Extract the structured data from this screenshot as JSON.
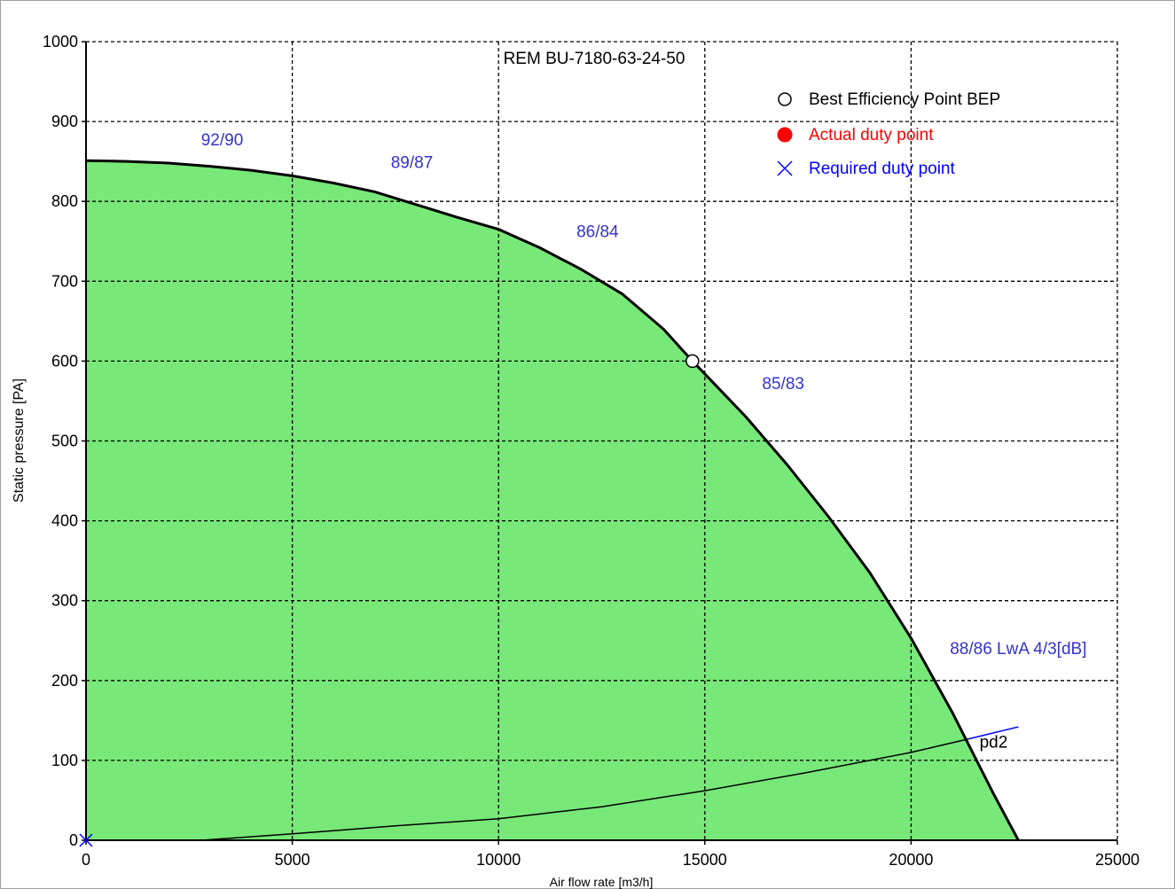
{
  "chart_data": {
    "type": "line",
    "title": "REM BU-7180-63-24-50",
    "xlabel": "Air flow rate [m3/h]",
    "ylabel": "Static pressure [PA]",
    "xlim": [
      0,
      25000
    ],
    "ylim": [
      0,
      1000
    ],
    "xticks": [
      "0",
      "5000",
      "10000",
      "15000",
      "20000",
      "25000"
    ],
    "yticks": [
      "0",
      "100",
      "200",
      "300",
      "400",
      "500",
      "600",
      "700",
      "800",
      "900",
      "1000"
    ],
    "grid": "dashed",
    "legend_position": "top-right",
    "legend": [
      {
        "label": "Best Efficiency Point BEP",
        "marker": "open-circle",
        "color": "#000000"
      },
      {
        "label": "Actual duty point",
        "marker": "filled-circle",
        "color": "#ff0000"
      },
      {
        "label": "Required duty point",
        "marker": "x",
        "color": "#0000ff"
      }
    ],
    "fan_curve": {
      "fill_color": "#78e878",
      "line_color": "#000000",
      "x": [
        0,
        1000,
        2000,
        3000,
        4000,
        5000,
        6000,
        7000,
        8000,
        9000,
        10000,
        11000,
        12000,
        13000,
        14000,
        14700,
        15000,
        16000,
        17000,
        18000,
        19000,
        20000,
        21000,
        22000,
        22600
      ],
      "y": [
        851,
        850,
        848,
        844,
        839,
        832,
        823,
        812,
        796,
        780,
        765,
        742,
        715,
        684,
        640,
        600,
        584,
        530,
        470,
        405,
        335,
        253,
        160,
        58,
        0
      ]
    },
    "system_curve": {
      "name": "pd2",
      "line_color": "#000000",
      "ext_color": "#0000ff",
      "x": [
        2800,
        5000,
        7500,
        10000,
        12500,
        15000,
        17500,
        20000,
        21400
      ],
      "y": [
        0,
        8,
        18,
        27,
        42,
        62,
        85,
        110,
        127
      ],
      "ext_x": [
        21400,
        22600
      ],
      "ext_y": [
        127,
        142
      ]
    },
    "bep": {
      "x": 14700,
      "y": 600
    },
    "required_duty_point": {
      "x": 0,
      "y": 0
    },
    "annotations": [
      {
        "text": "92/90",
        "x": 3300,
        "y": 870,
        "color": "#3333cc"
      },
      {
        "text": "89/87",
        "x": 7900,
        "y": 842,
        "color": "#3333cc"
      },
      {
        "text": "86/84",
        "x": 12400,
        "y": 755,
        "color": "#3333cc"
      },
      {
        "text": "85/83",
        "x": 16900,
        "y": 565,
        "color": "#3333cc"
      },
      {
        "text": "88/86 LwA 4/3[dB]",
        "x": 22600,
        "y": 233,
        "color": "#3333cc"
      },
      {
        "text": "pd2",
        "x": 22000,
        "y": 116,
        "color": "#000000"
      }
    ]
  }
}
